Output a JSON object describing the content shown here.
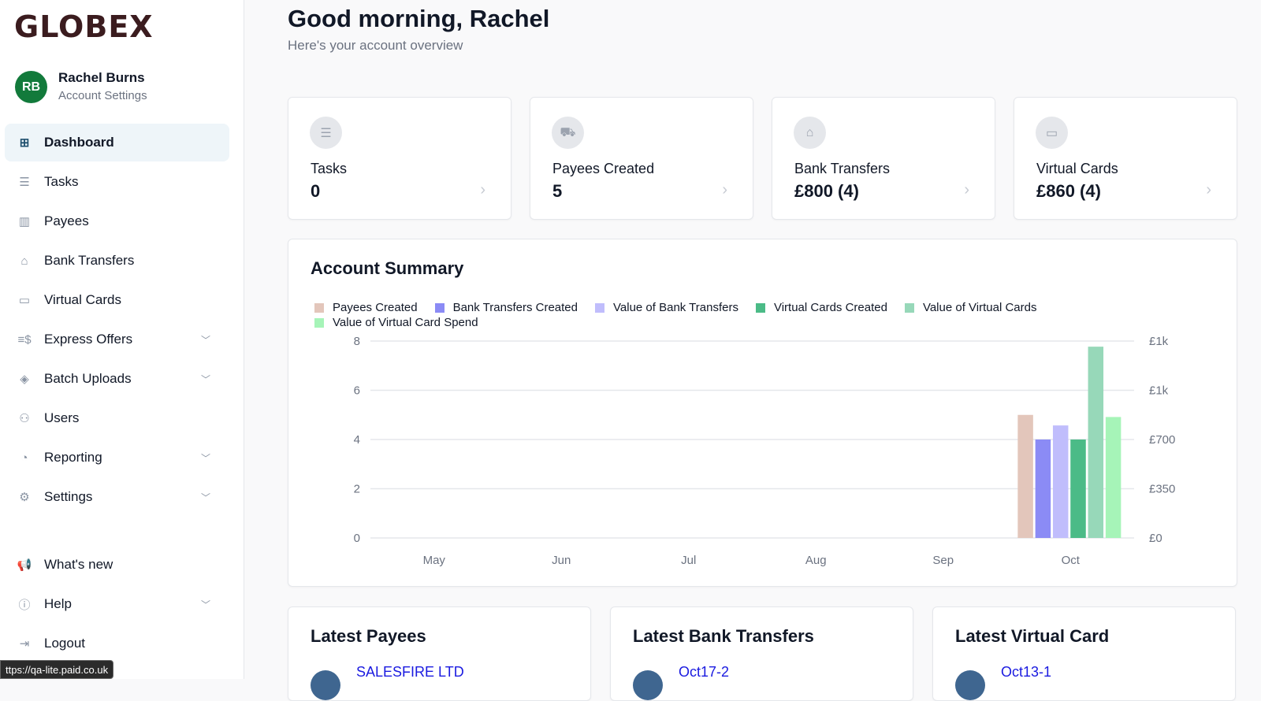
{
  "brand": {
    "logo": "GLOBEX"
  },
  "user": {
    "initials": "RB",
    "name": "Rachel Burns",
    "settings": "Account Settings",
    "avatar_color": "#127a3b"
  },
  "nav": [
    {
      "label": "Dashboard",
      "icon": "grid-icon",
      "active": true
    },
    {
      "label": "Tasks",
      "icon": "list-icon"
    },
    {
      "label": "Payees",
      "icon": "building-icon"
    },
    {
      "label": "Bank Transfers",
      "icon": "bank-icon"
    },
    {
      "label": "Virtual Cards",
      "icon": "card-icon"
    },
    {
      "label": "Express Offers",
      "icon": "money-fast-icon",
      "expandable": true
    },
    {
      "label": "Batch Uploads",
      "icon": "layers-icon",
      "expandable": true
    },
    {
      "label": "Users",
      "icon": "users-icon"
    },
    {
      "label": "Reporting",
      "icon": "pie-chart-icon",
      "expandable": true
    },
    {
      "label": "Settings",
      "icon": "gear-icon",
      "expandable": true
    },
    {
      "label": "What's new",
      "icon": "megaphone-icon"
    },
    {
      "label": "Help",
      "icon": "help-icon",
      "expandable": true
    },
    {
      "label": "Logout",
      "icon": "logout-icon"
    }
  ],
  "status_url": "ttps://qa-lite.paid.co.uk",
  "header": {
    "greeting": "Good morning, Rachel",
    "subtitle": "Here's your account overview"
  },
  "stats": [
    {
      "label": "Tasks",
      "value": "0",
      "icon": "list-icon"
    },
    {
      "label": "Payees Created",
      "value": "5",
      "icon": "truck-icon"
    },
    {
      "label": "Bank Transfers",
      "value": "£800 (4)",
      "icon": "bank-icon"
    },
    {
      "label": "Virtual Cards",
      "value": "£860 (4)",
      "icon": "card-icon"
    }
  ],
  "summary": {
    "title": "Account Summary"
  },
  "chart_data": {
    "type": "bar",
    "categories": [
      "May",
      "Jun",
      "Jul",
      "Aug",
      "Sep",
      "Oct"
    ],
    "left_ylim": [
      0,
      8
    ],
    "left_ticks": [
      "0",
      "2",
      "4",
      "6",
      "8"
    ],
    "right_ylim": [
      0,
      1400
    ],
    "right_ticks": [
      "£0",
      "£350",
      "£700",
      "£1k",
      "£1k"
    ],
    "grid": true,
    "legend": "top-left",
    "series": [
      {
        "name": "Payees Created",
        "axis": "left",
        "color": "#e3c6bb",
        "values": [
          0,
          0,
          0,
          0,
          0,
          5
        ]
      },
      {
        "name": "Bank Transfers Created",
        "axis": "left",
        "color": "#8b8bf5",
        "values": [
          0,
          0,
          0,
          0,
          0,
          4
        ]
      },
      {
        "name": "Value of Bank Transfers",
        "axis": "right",
        "color": "#c0bdfc",
        "values": [
          0,
          0,
          0,
          0,
          0,
          800
        ]
      },
      {
        "name": "Virtual Cards Created",
        "axis": "left",
        "color": "#4bbb87",
        "values": [
          0,
          0,
          0,
          0,
          0,
          4
        ]
      },
      {
        "name": "Value of Virtual Cards",
        "axis": "right",
        "color": "#97d8b9",
        "values": [
          0,
          0,
          0,
          0,
          0,
          1360
        ]
      },
      {
        "name": "Value of Virtual Card Spend",
        "axis": "right",
        "color": "#a6f4b8",
        "values": [
          0,
          0,
          0,
          0,
          0,
          860
        ]
      }
    ]
  },
  "latest": [
    {
      "title": "Latest Payees",
      "item": "SALESFIRE LTD"
    },
    {
      "title": "Latest Bank Transfers",
      "item": "Oct17-2"
    },
    {
      "title": "Latest Virtual Card",
      "item": "Oct13-1"
    }
  ]
}
